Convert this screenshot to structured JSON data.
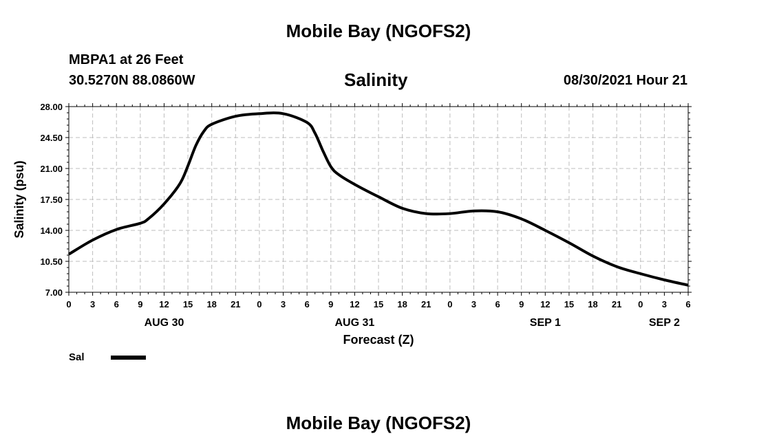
{
  "header": {
    "title": "Mobile Bay (NGOFS2)",
    "station": "MBPA1 at 26 Feet",
    "coords": "30.5270N  88.0860W",
    "variable": "Salinity",
    "timestamp": "08/30/2021 Hour 21"
  },
  "footer": {
    "title": "Mobile Bay (NGOFS2)"
  },
  "chart_data": {
    "type": "line",
    "title": "Salinity",
    "xlabel": "Forecast (Z)",
    "ylabel": "Salinity (psu)",
    "ylim": [
      7.0,
      28.0
    ],
    "y_ticks": [
      "7.00",
      "10.50",
      "14.00",
      "17.50",
      "21.00",
      "24.50",
      "28.00"
    ],
    "x_range_hours": [
      0,
      78
    ],
    "x_tick_labels": [
      "0",
      "3",
      "6",
      "9",
      "12",
      "15",
      "18",
      "21",
      "0",
      "3",
      "6",
      "9",
      "12",
      "15",
      "18",
      "21",
      "0",
      "3",
      "6",
      "9",
      "12",
      "15",
      "18",
      "21",
      "0",
      "3",
      "6"
    ],
    "date_labels": [
      {
        "label": "AUG 30",
        "hour": 12
      },
      {
        "label": "AUG 31",
        "hour": 36
      },
      {
        "label": "SEP 1",
        "hour": 60
      },
      {
        "label": "SEP 2",
        "hour": 75
      }
    ],
    "grid": true,
    "legend_position": "bottom-left",
    "series": [
      {
        "name": "Sal",
        "color": "#000000",
        "x": [
          0,
          3,
          6,
          9,
          10,
          12,
          14,
          15,
          16,
          17,
          18,
          21,
          24,
          27,
          30,
          31,
          32,
          33,
          34,
          36,
          39,
          42,
          45,
          48,
          51,
          54,
          57,
          60,
          63,
          66,
          69,
          72,
          75,
          78
        ],
        "y": [
          11.3,
          12.9,
          14.1,
          14.8,
          15.3,
          17.0,
          19.3,
          21.3,
          23.6,
          25.2,
          26.0,
          26.9,
          27.2,
          27.2,
          26.2,
          25.0,
          23.0,
          21.2,
          20.3,
          19.2,
          17.8,
          16.5,
          15.9,
          15.9,
          16.2,
          16.1,
          15.3,
          14.0,
          12.6,
          11.1,
          9.9,
          9.1,
          8.4,
          7.8
        ]
      }
    ]
  }
}
